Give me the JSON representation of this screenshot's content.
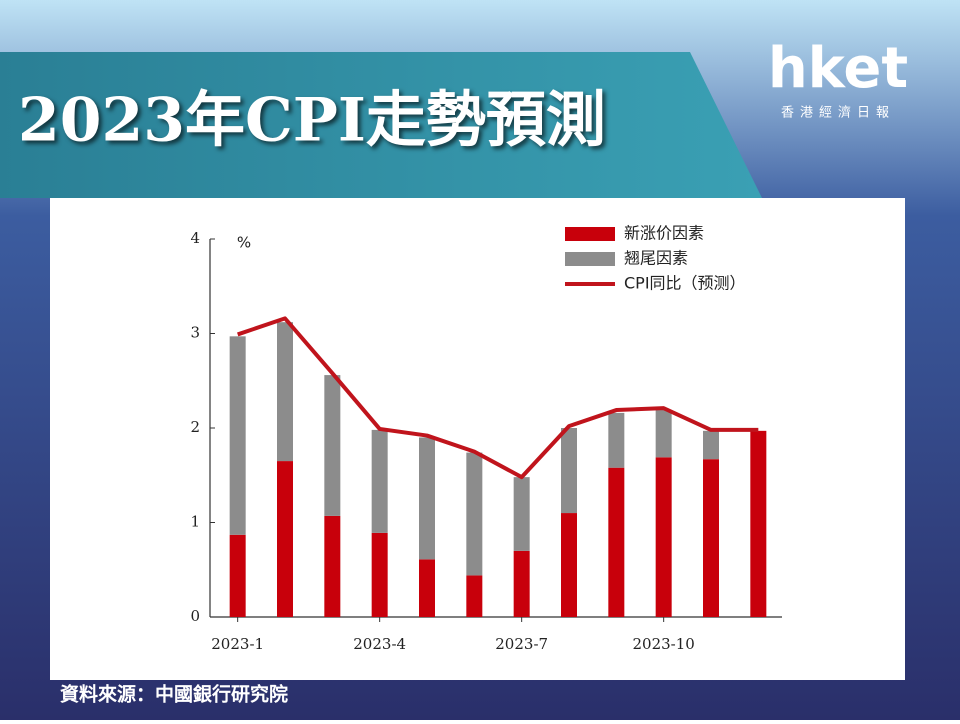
{
  "header": {
    "title": "2023年CPI走勢預測",
    "logo": "hket",
    "logo_subtitle": "香港經濟日報"
  },
  "source": "資料來源：中國銀行研究院",
  "chart_data": {
    "type": "bar",
    "stacked": true,
    "ylabel": "%",
    "categories": [
      "2023-1",
      null,
      null,
      "2023-4",
      null,
      null,
      "2023-7",
      null,
      null,
      "2023-10",
      null,
      null
    ],
    "series": [
      {
        "name": "新涨价因素",
        "color": "#c8000b",
        "values": [
          0.87,
          1.65,
          1.07,
          0.89,
          0.61,
          0.44,
          0.7,
          1.1,
          1.58,
          1.69,
          1.67,
          1.97
        ]
      },
      {
        "name": "翘尾因素",
        "color": "#8c8c8c",
        "values": [
          2.1,
          1.47,
          1.49,
          1.09,
          1.29,
          1.3,
          0.78,
          0.9,
          0.58,
          0.5,
          0.3,
          0
        ]
      },
      {
        "name": "CPI同比（预测）",
        "color": "#c0141c",
        "type": "line",
        "values": [
          2.99,
          3.16,
          2.58,
          1.99,
          1.92,
          1.75,
          1.48,
          2.02,
          2.19,
          2.21,
          1.98,
          1.98
        ]
      }
    ],
    "ylim": [
      0,
      4
    ],
    "yticks": [
      0,
      1,
      2,
      3,
      4
    ],
    "grid": false
  }
}
